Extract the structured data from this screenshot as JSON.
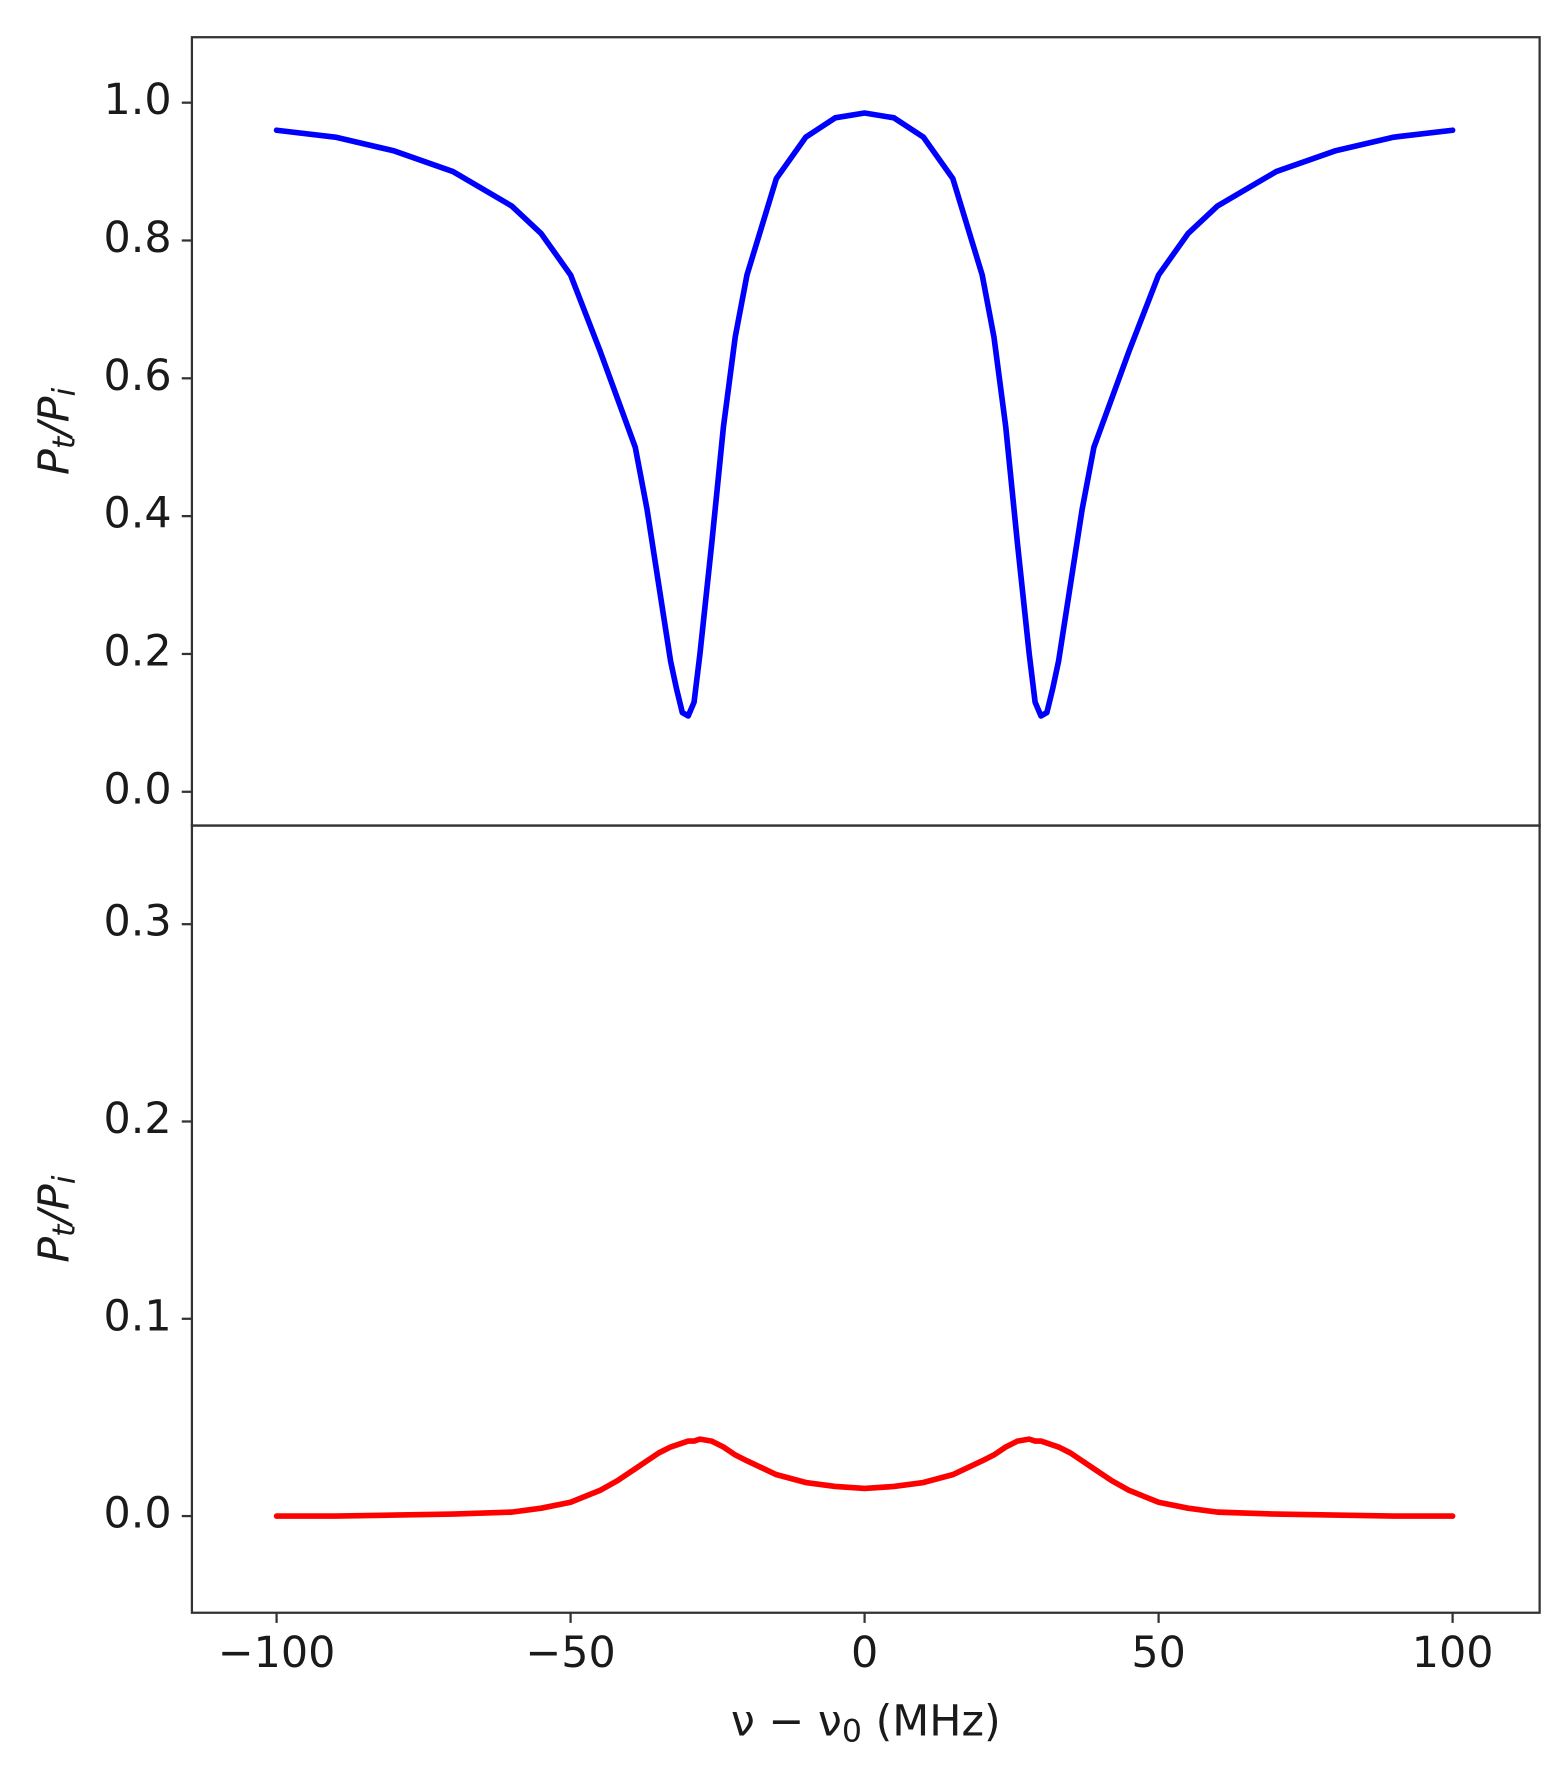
{
  "chart_data": [
    {
      "type": "line",
      "ylabel": [
        "P",
        "t",
        "/P",
        "i"
      ],
      "x": [
        -100,
        -90,
        -80,
        -70,
        -60,
        -55,
        -50,
        -45,
        -42,
        -39,
        -37,
        -35,
        -33,
        -32,
        -31,
        -30,
        -29,
        -28,
        -26,
        -24,
        -22,
        -20,
        -15,
        -10,
        -5,
        0,
        5,
        10,
        15,
        20,
        22,
        24,
        26,
        28,
        29,
        30,
        31,
        32,
        33,
        35,
        37,
        39,
        42,
        45,
        50,
        55,
        60,
        70,
        80,
        90,
        100
      ],
      "series": [
        {
          "color": "#0000ff",
          "values": [
            0.96,
            0.95,
            0.93,
            0.9,
            0.85,
            0.81,
            0.75,
            0.64,
            0.57,
            0.5,
            0.41,
            0.3,
            0.19,
            0.15,
            0.115,
            0.11,
            0.13,
            0.2,
            0.36,
            0.53,
            0.66,
            0.75,
            0.89,
            0.95,
            0.978,
            0.985,
            0.978,
            0.95,
            0.89,
            0.75,
            0.66,
            0.53,
            0.36,
            0.2,
            0.13,
            0.11,
            0.115,
            0.15,
            0.19,
            0.3,
            0.41,
            0.5,
            0.57,
            0.64,
            0.75,
            0.81,
            0.85,
            0.9,
            0.93,
            0.95,
            0.96
          ]
        }
      ],
      "xlim": [
        -114.4,
        114.8
      ],
      "ylim": [
        -0.049,
        1.095
      ],
      "yticks": [
        {
          "value": 0,
          "label": "0.0"
        },
        0.2,
        0.4,
        0.6,
        0.8,
        {
          "value": 1,
          "label": "1.0"
        }
      ]
    },
    {
      "type": "line",
      "ylabel": [
        "P",
        "t",
        "/P",
        "i"
      ],
      "xlabel": [
        "ν − ν",
        "0",
        " (MHz)"
      ],
      "x": [
        -100,
        -90,
        -80,
        -70,
        -60,
        -55,
        -50,
        -45,
        -42,
        -39,
        -37,
        -35,
        -33,
        -32,
        -31,
        -30,
        -29,
        -28,
        -26,
        -24,
        -22,
        -20,
        -15,
        -10,
        -5,
        0,
        5,
        10,
        15,
        20,
        22,
        24,
        26,
        28,
        29,
        30,
        31,
        32,
        33,
        35,
        37,
        39,
        42,
        45,
        50,
        55,
        60,
        70,
        80,
        90,
        100
      ],
      "series": [
        {
          "color": "#ff0000",
          "values": [
            0,
            0,
            0.0005,
            0.001,
            0.002,
            0.004,
            0.007,
            0.013,
            0.018,
            0.024,
            0.028,
            0.032,
            0.035,
            0.036,
            0.037,
            0.038,
            0.038,
            0.039,
            0.038,
            0.035,
            0.031,
            0.028,
            0.021,
            0.017,
            0.015,
            0.014,
            0.015,
            0.017,
            0.021,
            0.028,
            0.031,
            0.035,
            0.038,
            0.039,
            0.038,
            0.038,
            0.037,
            0.036,
            0.035,
            0.032,
            0.028,
            0.024,
            0.018,
            0.013,
            0.007,
            0.004,
            0.002,
            0.001,
            0.0005,
            0,
            0
          ]
        }
      ],
      "xlim": [
        -114.4,
        114.8
      ],
      "ylim": [
        -0.049,
        0.35
      ],
      "xticks": [
        {
          "value": -100,
          "label": "−100"
        },
        {
          "value": -50,
          "label": "−50"
        },
        0,
        50,
        100
      ],
      "yticks": [
        {
          "value": 0,
          "label": "0.0"
        },
        0.1,
        0.2,
        0.3
      ]
    }
  ]
}
